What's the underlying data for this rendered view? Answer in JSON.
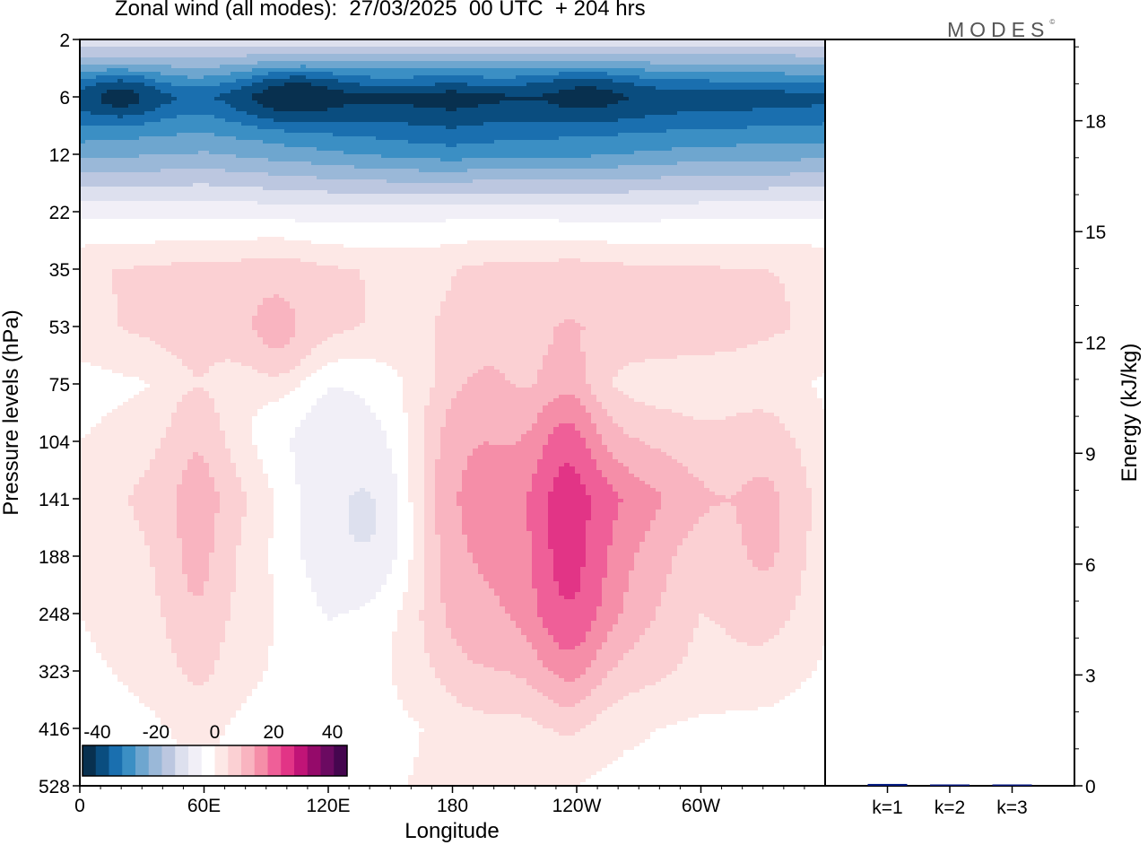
{
  "header": {
    "title": "Zonal wind (all modes):  27/03/2025  00 UTC  + 204 hrs",
    "logo_text": "MODES",
    "logo_mark": "©"
  },
  "chart_data": [
    {
      "type": "heatmap",
      "title": "Zonal wind (all modes):  27/03/2025  00 UTC  + 204 hrs",
      "xlabel": "Longitude",
      "ylabel": "Pressure levels (hPa)",
      "x_ticks": [
        "0",
        "60E",
        "120E",
        "180",
        "120W",
        "60W"
      ],
      "y_ticks": [
        "2",
        "6",
        "12",
        "22",
        "35",
        "53",
        "75",
        "104",
        "141",
        "188",
        "248",
        "323",
        "416",
        "528"
      ],
      "colorbar": {
        "ticks": [
          "-40",
          "-20",
          "0",
          "20",
          "40"
        ],
        "range": [
          -45,
          45
        ],
        "colors": [
          "#08304f",
          "#0a4d7f",
          "#1a6faf",
          "#3b8fc4",
          "#6ea6cf",
          "#9ab8d8",
          "#bcc7e0",
          "#dde0ee",
          "#f1eff7",
          "#ffffff",
          "#fde8e6",
          "#fbd0d3",
          "#f9b4c0",
          "#f58ea8",
          "#ef5f98",
          "#e23486",
          "#c11477",
          "#950a6a",
          "#6b0a61",
          "#45064f"
        ]
      },
      "bands": [
        {
          "level": "2",
          "values": [
            -10,
            -10,
            -10,
            -10,
            -10,
            -10,
            -10
          ]
        },
        {
          "level": "6",
          "values": [
            -38,
            -35,
            -40,
            -44,
            -38,
            -40,
            -38
          ]
        },
        {
          "level": "12",
          "values": [
            -24,
            -22,
            -26,
            -30,
            -28,
            -25,
            -24
          ]
        },
        {
          "level": "22",
          "values": [
            -6,
            -6,
            -7,
            -7,
            -7,
            -6,
            -6
          ]
        },
        {
          "level": "35",
          "values": [
            4,
            6,
            5,
            3,
            6,
            5,
            4
          ]
        },
        {
          "level": "53",
          "values": [
            3,
            8,
            6,
            2,
            7,
            8,
            3
          ]
        },
        {
          "level": "75",
          "values": [
            -2,
            1,
            -4,
            2,
            4,
            1,
            -1
          ]
        },
        {
          "level": "104",
          "values": [
            0,
            5,
            -8,
            8,
            12,
            6,
            0
          ]
        },
        {
          "level": "141",
          "values": [
            1,
            10,
            -6,
            14,
            22,
            10,
            1
          ]
        },
        {
          "level": "188",
          "values": [
            0,
            7,
            -5,
            10,
            20,
            6,
            0
          ]
        },
        {
          "level": "248",
          "values": [
            0,
            5,
            -3,
            8,
            18,
            4,
            0
          ]
        },
        {
          "level": "323",
          "values": [
            -1,
            3,
            -3,
            4,
            10,
            3,
            -1
          ]
        },
        {
          "level": "416",
          "values": [
            -2,
            0,
            -3,
            0,
            2,
            -1,
            -3
          ]
        },
        {
          "level": "528",
          "values": [
            -3,
            -1,
            -2,
            1,
            -1,
            -2,
            -4
          ]
        }
      ],
      "blobs": [
        {
          "lon": 20,
          "level_index": 1.0,
          "lon_half_width": 18,
          "level_half_width": 0.35,
          "value": -42
        },
        {
          "lon": 104,
          "level_index": 1.0,
          "lon_half_width": 26,
          "level_half_width": 0.4,
          "value": -44
        },
        {
          "lon": 244,
          "level_index": 1.0,
          "lon_half_width": 28,
          "level_half_width": 0.4,
          "value": -42
        },
        {
          "lon": 140,
          "level_index": 8.3,
          "lon_half_width": 30,
          "level_half_width": 1.8,
          "value": -10
        },
        {
          "lon": 195,
          "level_index": 8.0,
          "lon_half_width": 28,
          "level_half_width": 3.0,
          "value": 14
        },
        {
          "lon": 235,
          "level_index": 8.5,
          "lon_half_width": 16,
          "level_half_width": 2.5,
          "value": 24
        },
        {
          "lon": 56,
          "level_index": 8.5,
          "lon_half_width": 14,
          "level_half_width": 2.5,
          "value": 10
        },
        {
          "lon": 330,
          "level_index": 8.5,
          "lon_half_width": 22,
          "level_half_width": 2.0,
          "value": 10
        },
        {
          "lon": 95,
          "level_index": 5.0,
          "lon_half_width": 18,
          "level_half_width": 1.0,
          "value": 10
        }
      ]
    },
    {
      "type": "bar",
      "categories": [
        "k=1",
        "k=2",
        "k=3"
      ],
      "values": [
        0.05,
        0.02,
        0.02
      ],
      "ylabel": "Energy (kJ/kg)",
      "ylim": [
        0,
        20.2
      ],
      "y_ticks": [
        "0",
        "3",
        "6",
        "9",
        "12",
        "15",
        "18"
      ],
      "bar_color": "#001a80"
    }
  ]
}
